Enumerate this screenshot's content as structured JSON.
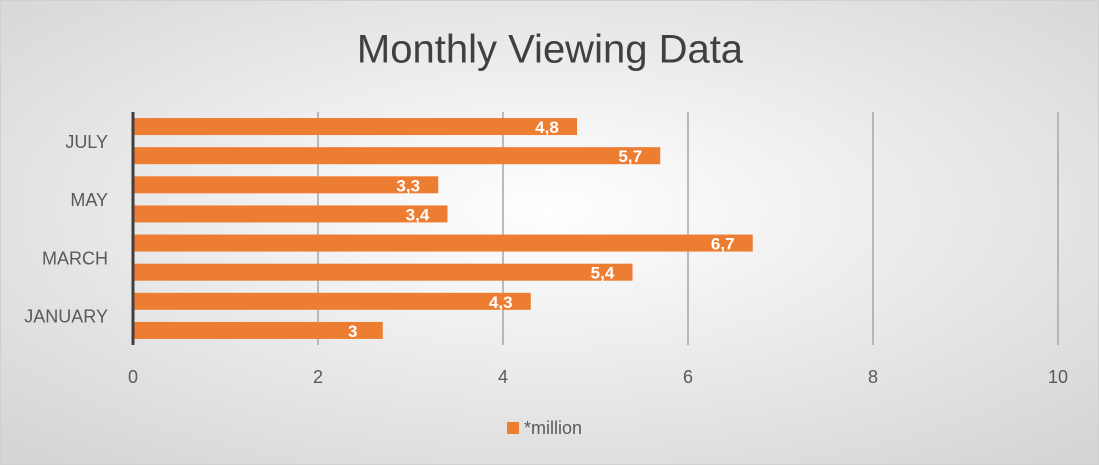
{
  "chart_data": {
    "type": "bar",
    "orientation": "horizontal",
    "title": "Monthly Viewing Data",
    "categories": [
      "JANUARY",
      null,
      "MARCH",
      null,
      "MAY",
      null,
      "JULY",
      null
    ],
    "series": [
      {
        "name": "*million",
        "color": "#ed7d31",
        "values": [
          2.7,
          4.3,
          5.4,
          6.7,
          3.4,
          3.3,
          5.7,
          4.8
        ],
        "value_labels": [
          "3",
          "4,3",
          "5,4",
          "6,7",
          "3,4",
          "3,3",
          "5,7",
          "4,8"
        ]
      }
    ],
    "xlim": [
      0,
      10
    ],
    "xticks": [
      0,
      2,
      4,
      6,
      8,
      10
    ],
    "grid": true,
    "legend": "bottom"
  }
}
